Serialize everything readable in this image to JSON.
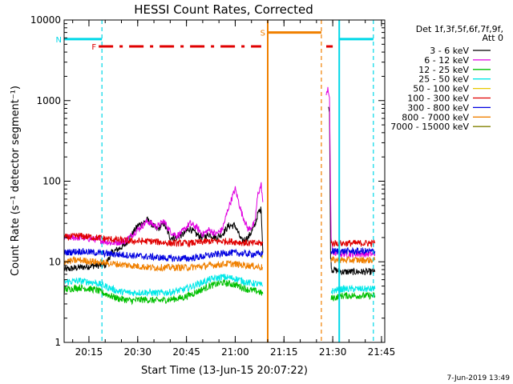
{
  "chart_data": {
    "type": "line",
    "title": "HESSI Count Rates, Corrected",
    "xlabel": "Start Time (13-Jun-15 20:07:22)",
    "ylabel": "Count Rate (s⁻¹ detector segment⁻¹)",
    "yscale": "log",
    "xlim": [
      "20:07:22",
      "21:46:00"
    ],
    "ylim": [
      1,
      10000
    ],
    "xticks": [
      "20:15",
      "20:30",
      "20:45",
      "21:00",
      "21:15",
      "21:30",
      "21:45"
    ],
    "yticks": [
      "1",
      "10",
      "100",
      "1000",
      "10000"
    ],
    "legend_title": "Det 1f,3f,5f,6f,7f,9f,",
    "legend_subtitle": "Att 0",
    "legend_position": "right",
    "timestamp": "7-Jun-2019 13:49",
    "series": [
      {
        "name": "3 - 6 keV",
        "color": "#000000",
        "segments": [
          {
            "x": [
              "20:07:22",
              "20:12:00",
              "20:17:00",
              "20:20:00",
              "20:22:00",
              "20:26:00",
              "20:30:00",
              "20:33:00",
              "20:36:00",
              "20:38:00",
              "20:40:00",
              "20:42:00",
              "20:44:00",
              "20:46:00",
              "20:48:00",
              "20:50:00",
              "20:52:00",
              "20:54:00",
              "20:56:00",
              "20:58:00",
              "21:00:00",
              "21:02:00",
              "21:04:00",
              "21:06:00",
              "21:07:00",
              "21:08:00",
              "21:08:30"
            ],
            "y": [
              8,
              8.5,
              9,
              9,
              13,
              16,
              28,
              33,
              25,
              30,
              20,
              20,
              22,
              26,
              22,
              20,
              22,
              20,
              22,
              28,
              28,
              18,
              20,
              28,
              40,
              45,
              13
            ]
          },
          {
            "x": [
              "21:28:40",
              "21:29:00",
              "21:29:20",
              "21:29:40",
              "21:30:00",
              "21:33:00",
              "21:36:00",
              "21:39:00",
              "21:42:00",
              "21:43:00"
            ],
            "y": [
              900,
              700,
              12,
              8,
              8,
              7.5,
              7.5,
              7.5,
              7.5,
              7.5
            ]
          }
        ]
      },
      {
        "name": "6 - 12 keV",
        "color": "#e000e0",
        "segments": [
          {
            "x": [
              "20:07:22",
              "20:12:00",
              "20:17:00",
              "20:20:00",
              "20:22:00",
              "20:26:00",
              "20:30:00",
              "20:33:00",
              "20:36:00",
              "20:38:00",
              "20:40:00",
              "20:42:00",
              "20:44:00",
              "20:46:00",
              "20:48:00",
              "20:50:00",
              "20:52:00",
              "20:54:00",
              "20:56:00",
              "20:58:00",
              "21:00:00",
              "21:02:00",
              "21:04:00",
              "21:06:00",
              "21:07:00",
              "21:08:00",
              "21:08:30"
            ],
            "y": [
              20,
              20,
              19,
              18,
              17,
              18,
              25,
              32,
              27,
              32,
              24,
              21,
              24,
              30,
              27,
              22,
              25,
              22,
              25,
              48,
              80,
              40,
              25,
              30,
              70,
              90,
              55
            ]
          },
          {
            "x": [
              "21:28:00",
              "21:28:30",
              "21:29:00",
              "21:29:30",
              "21:30:00",
              "21:33:00",
              "21:36:00",
              "21:39:00",
              "21:42:00",
              "21:43:00"
            ],
            "y": [
              1100,
              1500,
              1000,
              20,
              13,
              12.5,
              12.5,
              12.5,
              12.5,
              12.5
            ]
          }
        ]
      },
      {
        "name": "12 - 25 keV",
        "color": "#00c000",
        "segments": [
          {
            "x": [
              "20:07:22",
              "20:12:00",
              "20:17:00",
              "20:20:00",
              "20:24:00",
              "20:28:00",
              "20:32:00",
              "20:36:00",
              "20:40:00",
              "20:44:00",
              "20:48:00",
              "20:52:00",
              "20:56:00",
              "21:00:00",
              "21:04:00",
              "21:07:00",
              "21:08:30"
            ],
            "y": [
              4.5,
              4.8,
              4.5,
              4,
              3.5,
              3.3,
              3.4,
              3.3,
              3.4,
              3.6,
              4.2,
              5,
              5.5,
              5.2,
              4.5,
              4.3,
              4
            ]
          },
          {
            "x": [
              "21:29:30",
              "21:33:00",
              "21:36:00",
              "21:39:00",
              "21:42:00",
              "21:43:00"
            ],
            "y": [
              3.5,
              3.8,
              3.8,
              3.8,
              3.8,
              3.8
            ]
          }
        ]
      },
      {
        "name": "25 - 50 keV",
        "color": "#00e8e8",
        "segments": [
          {
            "x": [
              "20:07:22",
              "20:12:00",
              "20:17:00",
              "20:20:00",
              "20:24:00",
              "20:28:00",
              "20:32:00",
              "20:36:00",
              "20:40:00",
              "20:44:00",
              "20:48:00",
              "20:52:00",
              "20:56:00",
              "21:00:00",
              "21:04:00",
              "21:07:00",
              "21:08:30"
            ],
            "y": [
              5.6,
              5.8,
              5.5,
              5,
              4.3,
              4.1,
              4.2,
              4.1,
              4.2,
              4.5,
              5.2,
              6,
              6.5,
              6.2,
              5.5,
              5.3,
              5
            ]
          },
          {
            "x": [
              "21:29:30",
              "21:33:00",
              "21:36:00",
              "21:39:00",
              "21:42:00",
              "21:43:00"
            ],
            "y": [
              4.3,
              4.6,
              4.6,
              4.6,
              4.6,
              4.6
            ]
          }
        ]
      },
      {
        "name": "50 - 100 keV",
        "color": "#e8c800",
        "segments": [
          {
            "x": [
              "21:08:00",
              "21:08:30"
            ],
            "y": [
              12,
              12
            ]
          }
        ]
      },
      {
        "name": "100 - 300 keV",
        "color": "#e00000",
        "segments": [
          {
            "x": [
              "20:07:22",
              "20:12:00",
              "20:17:00",
              "20:22:00",
              "20:28:00",
              "20:34:00",
              "20:40:00",
              "20:46:00",
              "20:52:00",
              "20:58:00",
              "21:04:00",
              "21:08:30"
            ],
            "y": [
              20,
              21,
              20,
              19,
              18,
              18,
              17,
              17,
              18,
              18,
              17,
              17
            ]
          },
          {
            "x": [
              "21:29:30",
              "21:33:00",
              "21:36:00",
              "21:39:00",
              "21:42:00",
              "21:43:00"
            ],
            "y": [
              17,
              17,
              17,
              17,
              17,
              17
            ]
          }
        ]
      },
      {
        "name": "300 - 800 keV",
        "color": "#0000e0",
        "segments": [
          {
            "x": [
              "20:07:22",
              "20:12:00",
              "20:17:00",
              "20:22:00",
              "20:28:00",
              "20:34:00",
              "20:40:00",
              "20:46:00",
              "20:52:00",
              "20:58:00",
              "21:04:00",
              "21:08:30"
            ],
            "y": [
              13,
              13.5,
              13,
              12.5,
              12,
              11.5,
              11,
              11,
              12,
              13,
              12.5,
              12.5
            ]
          },
          {
            "x": [
              "21:29:30",
              "21:33:00",
              "21:36:00",
              "21:39:00",
              "21:42:00",
              "21:43:00"
            ],
            "y": [
              13.5,
              13.5,
              13.5,
              13.5,
              13.5,
              13.5
            ]
          }
        ]
      },
      {
        "name": "800 - 7000 keV",
        "color": "#f08000",
        "segments": [
          {
            "x": [
              "20:07:22",
              "20:12:00",
              "20:17:00",
              "20:22:00",
              "20:28:00",
              "20:34:00",
              "20:40:00",
              "20:46:00",
              "20:52:00",
              "20:58:00",
              "21:04:00",
              "21:08:30"
            ],
            "y": [
              10,
              10.5,
              10,
              9.5,
              9,
              8.5,
              8.5,
              8.5,
              9,
              9.5,
              9,
              8.5
            ]
          },
          {
            "x": [
              "21:29:30",
              "21:33:00",
              "21:36:00",
              "21:39:00",
              "21:42:00",
              "21:43:00"
            ],
            "y": [
              10.5,
              10.5,
              10.5,
              10.5,
              10.5,
              10.5
            ]
          }
        ]
      },
      {
        "name": "7000 - 15000 keV",
        "color": "#808000",
        "segments": []
      }
    ],
    "flag_lines": [
      {
        "label": "N",
        "color": "#00d8e8",
        "style": "dashed",
        "x": "20:19:00"
      },
      {
        "label": "",
        "color": "#00d8e8",
        "style": "solid",
        "x": "21:32:00"
      },
      {
        "label": "",
        "color": "#00d8e8",
        "style": "dashed",
        "x": "21:42:30"
      },
      {
        "label": "S",
        "color": "#f08000",
        "style": "solid",
        "x": "21:10:00"
      },
      {
        "label": "",
        "color": "#f08000",
        "style": "dashed",
        "x": "21:26:30"
      }
    ],
    "flag_bars": [
      {
        "label": "N",
        "color": "#00d8e8",
        "style": "solid",
        "y": 5800,
        "x": [
          [
            "20:07:22",
            "20:19:00"
          ],
          [
            "21:32:00",
            "21:42:30"
          ]
        ]
      },
      {
        "label": "S",
        "color": "#f08000",
        "style": "solid",
        "y": 7000,
        "x": [
          [
            "21:10:00",
            "21:26:30"
          ]
        ]
      },
      {
        "label": "F",
        "color": "#e00000",
        "style": "dashdot",
        "y": 4700,
        "x": [
          [
            "20:18:00",
            "21:08:00"
          ],
          [
            "21:28:00",
            "21:30:00"
          ]
        ]
      }
    ]
  }
}
